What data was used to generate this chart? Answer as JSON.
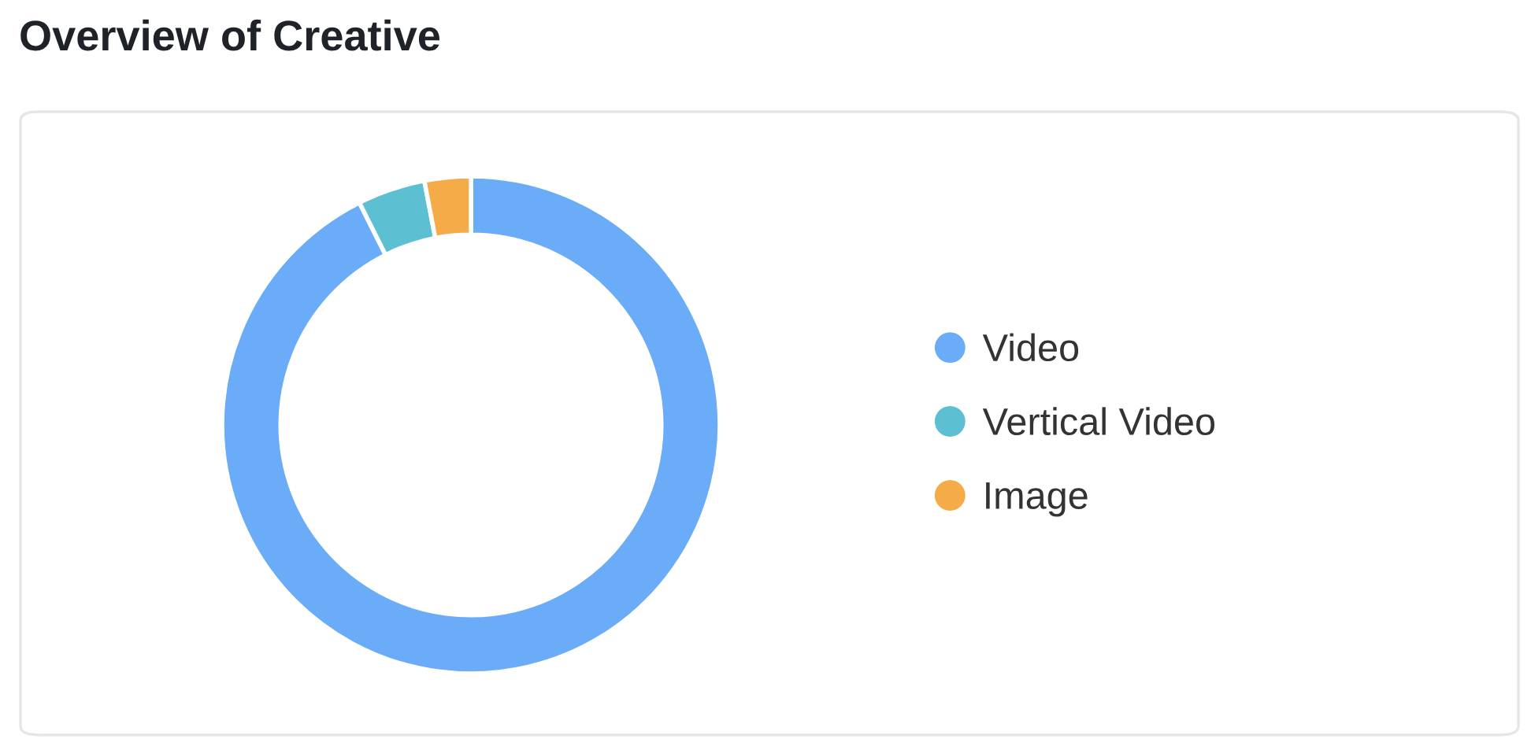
{
  "chart_data": {
    "type": "donut",
    "title": "Overview of Creative",
    "categories": [
      "Video",
      "Vertical Video",
      "Image"
    ],
    "values": [
      92.6,
      4.4,
      3.0
    ],
    "colors": [
      "#6aacf8",
      "#5cbfd2",
      "#f4ab48"
    ],
    "legend": "right"
  }
}
